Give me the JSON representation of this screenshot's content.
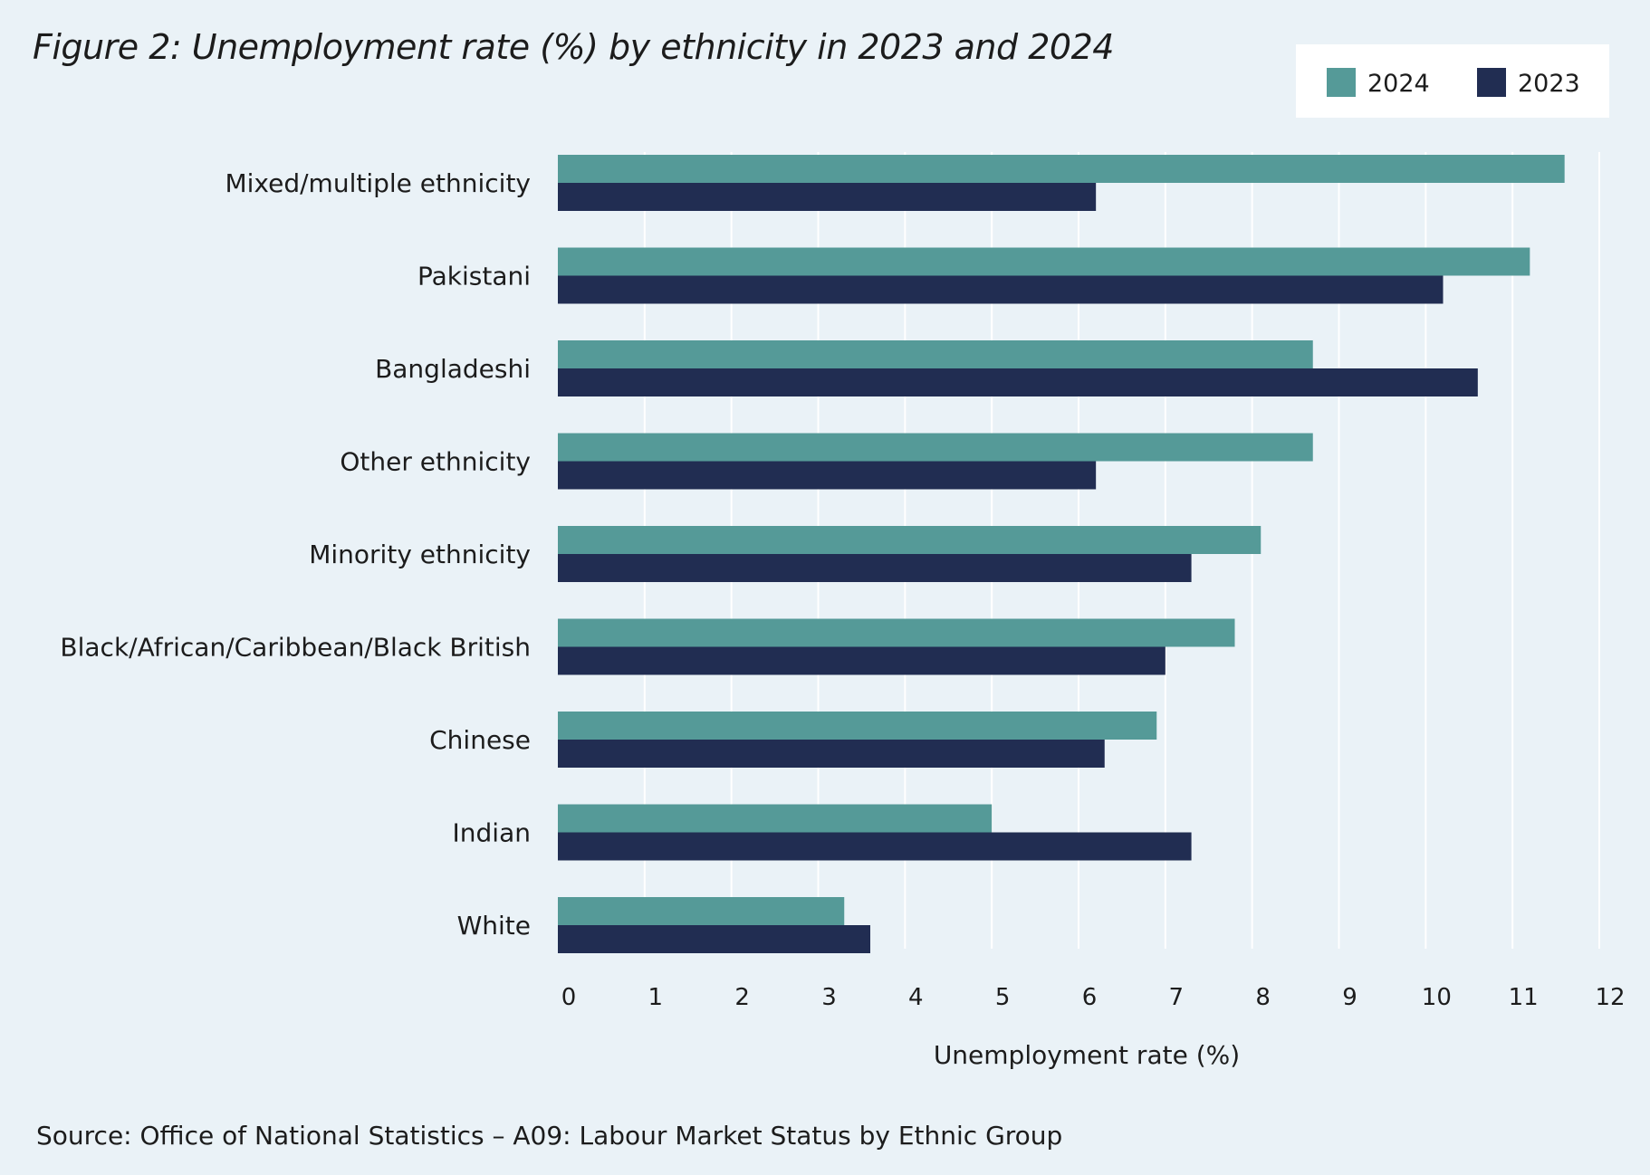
{
  "chart_data": {
    "type": "bar",
    "orientation": "horizontal",
    "title": "Figure 2: Unemployment rate (%) by ethnicity in 2023 and 2024",
    "xlabel": "Unemployment rate (%)",
    "ylabel": "",
    "xlim": [
      0,
      12
    ],
    "x_ticks": [
      "0",
      "1",
      "2",
      "3",
      "4",
      "5",
      "6",
      "7",
      "8",
      "9",
      "10",
      "11",
      "12"
    ],
    "grid": "vertical",
    "legend_position": "top-right",
    "categories": [
      "Mixed/multiple ethnicity",
      "Pakistani",
      "Bangladeshi",
      "Other ethnicity",
      "Minority ethnicity",
      "Black/African/Caribbean/Black British",
      "Chinese",
      "Indian",
      "White"
    ],
    "series": [
      {
        "name": "2024",
        "color": "#559a98",
        "values": [
          11.6,
          11.2,
          8.7,
          8.7,
          8.1,
          7.8,
          6.9,
          5.0,
          3.3
        ]
      },
      {
        "name": "2023",
        "color": "#212d52",
        "values": [
          6.2,
          10.2,
          10.6,
          6.2,
          7.3,
          7.0,
          6.3,
          7.3,
          3.6
        ]
      }
    ]
  },
  "source": "Source: Office of National Statistics – A09: Labour Market Status by Ethnic Group"
}
